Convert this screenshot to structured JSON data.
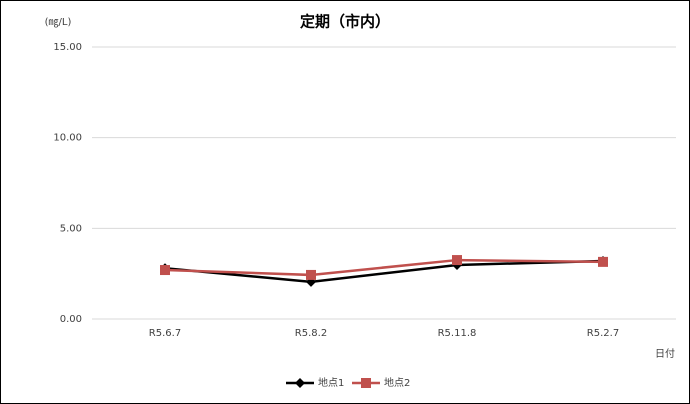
{
  "chart_data": {
    "type": "line",
    "title": "定期（市内）",
    "y_label": "(㎎/L)",
    "x_label": "日付",
    "categories": [
      "R5.6.7",
      "R5.8.2",
      "R5.11.8",
      "R5.2.7"
    ],
    "series": [
      {
        "name": "地点1",
        "color": "#000000",
        "marker": "diamond",
        "values": [
          2.8,
          2.05,
          2.98,
          3.2
        ]
      },
      {
        "name": "地点2",
        "color": "#c0504d",
        "marker": "square",
        "values": [
          2.7,
          2.43,
          3.25,
          3.15
        ]
      }
    ],
    "ylim": [
      0,
      15
    ],
    "yticks": [
      {
        "value": 0,
        "label": "0.00"
      },
      {
        "value": 5,
        "label": "5.00"
      },
      {
        "value": 10,
        "label": "10.00"
      },
      {
        "value": 15,
        "label": "15.00"
      }
    ],
    "grid": true,
    "legend": "bottom"
  }
}
